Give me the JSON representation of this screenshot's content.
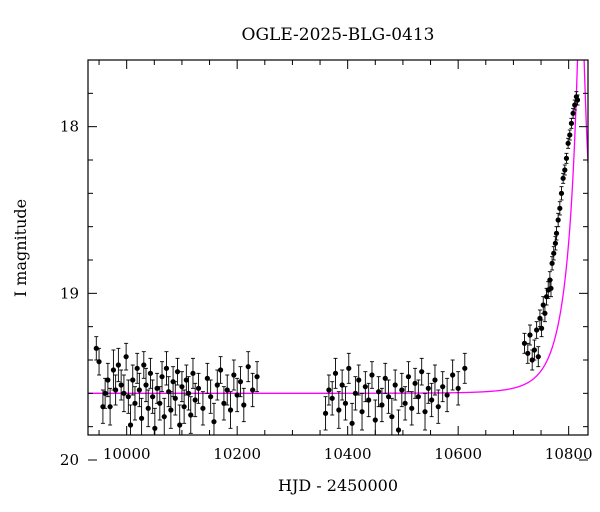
{
  "chart_data": {
    "type": "scatter",
    "title": "OGLE-2025-BLG-0413",
    "xlabel": "HJD - 2450000",
    "ylabel": "I magnitude",
    "xlim": [
      9930,
      10835
    ],
    "ylim": [
      19.85,
      17.6
    ],
    "y_inverted": true,
    "xticks": [
      10000,
      10200,
      10400,
      10600,
      10800
    ],
    "yticks": [
      18,
      19,
      20
    ],
    "grid": false,
    "legend": "none",
    "colors": {
      "points": "#000000",
      "model": "#ff00ff"
    },
    "series": [
      {
        "kind": "points-with-errorbars",
        "points": [
          [
            9945,
            19.33,
            0.07
          ],
          [
            9950,
            19.41,
            0.08
          ],
          [
            9957,
            19.68,
            0.1
          ],
          [
            9961,
            19.6,
            0.09
          ],
          [
            9966,
            19.52,
            0.1
          ],
          [
            9970,
            19.68,
            0.11
          ],
          [
            9976,
            19.46,
            0.12
          ],
          [
            9980,
            19.58,
            0.09
          ],
          [
            9985,
            19.43,
            0.1
          ],
          [
            9990,
            19.55,
            0.09
          ],
          [
            9995,
            19.6,
            0.11
          ],
          [
            9999,
            19.38,
            0.08
          ],
          [
            10003,
            19.62,
            0.1
          ],
          [
            10007,
            19.79,
            0.12
          ],
          [
            10011,
            19.52,
            0.09
          ],
          [
            10015,
            19.66,
            0.1
          ],
          [
            10019,
            19.45,
            0.09
          ],
          [
            10023,
            19.58,
            0.1
          ],
          [
            10027,
            19.75,
            0.12
          ],
          [
            10031,
            19.43,
            0.08
          ],
          [
            10035,
            19.55,
            0.1
          ],
          [
            10039,
            19.69,
            0.11
          ],
          [
            10043,
            19.48,
            0.09
          ],
          [
            10047,
            19.62,
            0.1
          ],
          [
            10051,
            19.81,
            0.12
          ],
          [
            10055,
            19.57,
            0.09
          ],
          [
            10060,
            19.66,
            0.1
          ],
          [
            10064,
            19.5,
            0.09
          ],
          [
            10068,
            19.74,
            0.11
          ],
          [
            10072,
            19.45,
            0.1
          ],
          [
            10076,
            19.59,
            0.09
          ],
          [
            10080,
            19.7,
            0.11
          ],
          [
            10084,
            19.53,
            0.09
          ],
          [
            10088,
            19.63,
            0.1
          ],
          [
            10092,
            19.47,
            0.08
          ],
          [
            10096,
            19.79,
            0.12
          ],
          [
            10100,
            19.56,
            0.09
          ],
          [
            10104,
            19.68,
            0.1
          ],
          [
            10108,
            19.52,
            0.09
          ],
          [
            10112,
            19.6,
            0.1
          ],
          [
            10116,
            19.73,
            0.11
          ],
          [
            10120,
            19.48,
            0.09
          ],
          [
            10124,
            19.64,
            0.1
          ],
          [
            10130,
            19.57,
            0.09
          ],
          [
            10138,
            19.69,
            0.1
          ],
          [
            10146,
            19.51,
            0.09
          ],
          [
            10152,
            19.62,
            0.1
          ],
          [
            10158,
            19.77,
            0.11
          ],
          [
            10164,
            19.55,
            0.09
          ],
          [
            10170,
            19.46,
            0.08
          ],
          [
            10176,
            19.66,
            0.1
          ],
          [
            10182,
            19.58,
            0.09
          ],
          [
            10188,
            19.7,
            0.11
          ],
          [
            10194,
            19.49,
            0.09
          ],
          [
            10200,
            19.61,
            0.1
          ],
          [
            10206,
            19.53,
            0.09
          ],
          [
            10212,
            19.67,
            0.1
          ],
          [
            10220,
            19.44,
            0.09
          ],
          [
            10228,
            19.58,
            0.1
          ],
          [
            10236,
            19.5,
            0.09
          ],
          [
            10360,
            19.72,
            0.1
          ],
          [
            10366,
            19.58,
            0.09
          ],
          [
            10372,
            19.63,
            0.1
          ],
          [
            10378,
            19.48,
            0.09
          ],
          [
            10384,
            19.7,
            0.11
          ],
          [
            10390,
            19.55,
            0.09
          ],
          [
            10396,
            19.66,
            0.1
          ],
          [
            10402,
            19.45,
            0.09
          ],
          [
            10408,
            19.78,
            0.12
          ],
          [
            10414,
            19.6,
            0.1
          ],
          [
            10420,
            19.52,
            0.09
          ],
          [
            10426,
            19.71,
            0.11
          ],
          [
            10432,
            19.56,
            0.09
          ],
          [
            10438,
            19.64,
            0.1
          ],
          [
            10444,
            19.49,
            0.08
          ],
          [
            10450,
            19.76,
            0.12
          ],
          [
            10456,
            19.59,
            0.09
          ],
          [
            10462,
            19.67,
            0.1
          ],
          [
            10468,
            19.51,
            0.09
          ],
          [
            10474,
            19.62,
            0.1
          ],
          [
            10480,
            19.74,
            0.11
          ],
          [
            10486,
            19.55,
            0.09
          ],
          [
            10492,
            19.82,
            0.12
          ],
          [
            10498,
            19.58,
            0.1
          ],
          [
            10504,
            19.66,
            0.1
          ],
          [
            10510,
            19.5,
            0.09
          ],
          [
            10516,
            19.69,
            0.1
          ],
          [
            10522,
            19.54,
            0.09
          ],
          [
            10528,
            19.62,
            0.1
          ],
          [
            10534,
            19.47,
            0.08
          ],
          [
            10540,
            19.71,
            0.11
          ],
          [
            10546,
            19.57,
            0.09
          ],
          [
            10552,
            19.64,
            0.1
          ],
          [
            10558,
            19.52,
            0.09
          ],
          [
            10564,
            19.68,
            0.1
          ],
          [
            10572,
            19.56,
            0.09
          ],
          [
            10580,
            19.61,
            0.1
          ],
          [
            10590,
            19.49,
            0.09
          ],
          [
            10600,
            19.57,
            0.1
          ],
          [
            10612,
            19.45,
            0.09
          ],
          [
            10720,
            19.3,
            0.06
          ],
          [
            10726,
            19.36,
            0.06
          ],
          [
            10730,
            19.25,
            0.06
          ],
          [
            10734,
            19.4,
            0.06
          ],
          [
            10738,
            19.34,
            0.06
          ],
          [
            10742,
            19.22,
            0.05
          ],
          [
            10745,
            19.38,
            0.06
          ],
          [
            10748,
            19.15,
            0.05
          ],
          [
            10751,
            19.21,
            0.05
          ],
          [
            10754,
            19.07,
            0.05
          ],
          [
            10757,
            19.12,
            0.05
          ],
          [
            10760,
            19.02,
            0.05
          ],
          [
            10763,
            18.98,
            0.05
          ],
          [
            10766,
            18.92,
            0.05
          ],
          [
            10768,
            18.97,
            0.05
          ],
          [
            10770,
            18.82,
            0.04
          ],
          [
            10773,
            18.76,
            0.04
          ],
          [
            10776,
            18.7,
            0.04
          ],
          [
            10778,
            18.64,
            0.04
          ],
          [
            10781,
            18.56,
            0.04
          ],
          [
            10784,
            18.49,
            0.04
          ],
          [
            10787,
            18.4,
            0.04
          ],
          [
            10790,
            18.31,
            0.03
          ],
          [
            10793,
            18.26,
            0.03
          ],
          [
            10796,
            18.19,
            0.03
          ],
          [
            10799,
            18.1,
            0.03
          ],
          [
            10802,
            18.05,
            0.03
          ],
          [
            10805,
            17.98,
            0.03
          ],
          [
            10808,
            17.92,
            0.03
          ],
          [
            10811,
            17.87,
            0.03
          ],
          [
            10814,
            17.82,
            0.03
          ],
          [
            10816,
            17.84,
            0.03
          ]
        ]
      },
      {
        "kind": "model-curve",
        "model": {
          "baseline": 19.6,
          "t0": 10822,
          "tE": 48,
          "u0": 0.1,
          "fs": 1.0
        }
      }
    ]
  }
}
